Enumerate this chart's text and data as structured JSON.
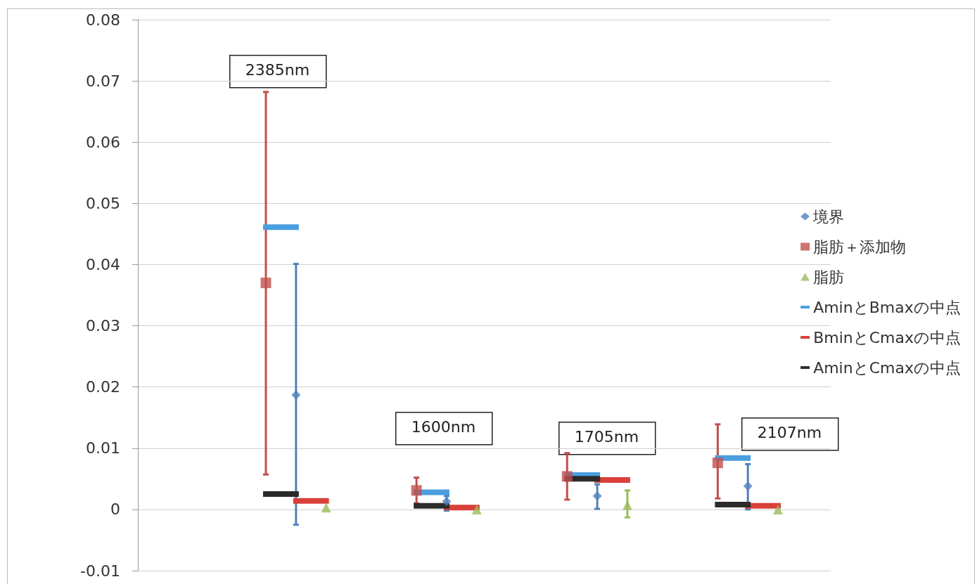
{
  "chart_data": {
    "type": "scatter",
    "categories": [
      null,
      null,
      null,
      null,
      null,
      null,
      null,
      null,
      null,
      null,
      null,
      null,
      null,
      null,
      null,
      null,
      null,
      null,
      null,
      null,
      null,
      null,
      null,
      null,
      null,
      null,
      null,
      null,
      null,
      null,
      null,
      null,
      null,
      null,
      null,
      null,
      null,
      null,
      null,
      null,
      null,
      null,
      null,
      null,
      null,
      null
    ],
    "ylim": [
      -0.01,
      0.08
    ],
    "yticks": [
      -0.01,
      0,
      0.01,
      0.02,
      0.03,
      0.04,
      0.05,
      0.06,
      0.07,
      0.08
    ],
    "grid": "y",
    "legend": "right",
    "annotations": [
      "2385nm",
      "1600nm",
      "1705nm",
      "2107nm"
    ],
    "series": [
      {
        "name": "境界",
        "color": "#4f81bd",
        "marker": "diamond",
        "values": [
          null,
          null,
          null,
          null,
          null,
          null,
          null,
          null,
          null,
          null,
          0.0187,
          null,
          null,
          null,
          null,
          null,
          null,
          null,
          null,
          null,
          0.0013,
          null,
          null,
          null,
          null,
          null,
          null,
          null,
          null,
          null,
          0.0022,
          null,
          null,
          null,
          null,
          null,
          null,
          null,
          null,
          null,
          0.0038,
          null,
          null,
          null,
          null,
          null
        ],
        "errors": [
          null,
          null,
          null,
          null,
          null,
          null,
          null,
          null,
          null,
          null,
          [
            -0.0025,
            0.0401
          ],
          null,
          null,
          null,
          null,
          null,
          null,
          null,
          null,
          null,
          [
            -0.0002,
            0.0022
          ],
          null,
          null,
          null,
          null,
          null,
          null,
          null,
          null,
          null,
          [
            0.0001,
            0.0041
          ],
          null,
          null,
          null,
          null,
          null,
          null,
          null,
          null,
          null,
          [
            0.0,
            0.0074
          ],
          null,
          null,
          null,
          null,
          null
        ]
      },
      {
        "name": "脂肪＋添加物",
        "color": "#c0504d",
        "marker": "square",
        "values": [
          null,
          null,
          null,
          null,
          null,
          null,
          null,
          null,
          0.037,
          null,
          null,
          null,
          null,
          null,
          null,
          null,
          null,
          null,
          0.0031,
          null,
          null,
          null,
          null,
          null,
          null,
          null,
          null,
          null,
          0.0054,
          null,
          null,
          null,
          null,
          null,
          null,
          null,
          null,
          null,
          0.0076,
          null,
          null,
          null,
          null,
          null,
          null,
          null
        ],
        "errors": [
          null,
          null,
          null,
          null,
          null,
          null,
          null,
          null,
          [
            0.0057,
            0.0682
          ],
          null,
          null,
          null,
          null,
          null,
          null,
          null,
          null,
          null,
          [
            0.001,
            0.0052
          ],
          null,
          null,
          null,
          null,
          null,
          null,
          null,
          null,
          null,
          [
            0.0016,
            0.0092
          ],
          null,
          null,
          null,
          null,
          null,
          null,
          null,
          null,
          null,
          [
            0.0018,
            0.0139
          ],
          null,
          null,
          null,
          null,
          null,
          null,
          null
        ]
      },
      {
        "name": "脂肪",
        "color": "#9bbb59",
        "marker": "triangle",
        "values": [
          null,
          null,
          null,
          null,
          null,
          null,
          null,
          null,
          null,
          null,
          null,
          null,
          0.0003,
          null,
          null,
          null,
          null,
          null,
          null,
          null,
          null,
          null,
          0.0,
          null,
          null,
          null,
          null,
          null,
          null,
          null,
          null,
          null,
          0.0007,
          null,
          null,
          null,
          null,
          null,
          null,
          null,
          null,
          null,
          0.0,
          null,
          null,
          null
        ],
        "errors": [
          null,
          null,
          null,
          null,
          null,
          null,
          null,
          null,
          null,
          null,
          null,
          null,
          null,
          null,
          null,
          null,
          null,
          null,
          null,
          null,
          null,
          null,
          null,
          null,
          null,
          null,
          null,
          null,
          null,
          null,
          null,
          null,
          [
            -0.0013,
            0.0031
          ],
          null,
          null,
          null,
          null,
          null,
          null,
          null,
          null,
          null,
          null,
          null,
          null,
          null
        ]
      },
      {
        "name": "AminとBmaxの中点",
        "type": "line",
        "marker": "none",
        "color": "#4a9fe0",
        "values": [
          null,
          null,
          null,
          null,
          null,
          null,
          null,
          null,
          0.0461,
          0.0461,
          0.0461,
          null,
          null,
          null,
          null,
          null,
          null,
          null,
          0.0028,
          0.0028,
          0.0028,
          null,
          null,
          null,
          null,
          null,
          null,
          null,
          0.0056,
          0.0056,
          0.0056,
          null,
          null,
          null,
          null,
          null,
          null,
          null,
          0.0084,
          0.0084,
          0.0084,
          null,
          null,
          null,
          null,
          null
        ]
      },
      {
        "name": "BminとCmaxの中点",
        "type": "line",
        "marker": "none",
        "color": "#d9403a",
        "values": [
          null,
          null,
          null,
          null,
          null,
          null,
          null,
          null,
          null,
          null,
          0.0014,
          0.0014,
          0.0014,
          null,
          null,
          null,
          null,
          null,
          null,
          null,
          0.0003,
          0.0003,
          0.0003,
          null,
          null,
          null,
          null,
          null,
          null,
          null,
          0.0048,
          0.0048,
          0.0048,
          null,
          null,
          null,
          null,
          null,
          null,
          null,
          0.0006,
          0.0006,
          0.0006,
          null,
          null,
          null
        ]
      },
      {
        "name": "AminとCmaxの中点",
        "type": "line",
        "marker": "none",
        "color": "#2b2b2b",
        "values": [
          null,
          null,
          null,
          null,
          null,
          null,
          null,
          null,
          0.0025,
          0.0025,
          0.0025,
          null,
          null,
          null,
          null,
          null,
          null,
          null,
          0.0006,
          0.0006,
          0.0006,
          null,
          null,
          null,
          null,
          null,
          null,
          null,
          0.005,
          0.005,
          0.005,
          null,
          null,
          null,
          null,
          null,
          null,
          null,
          0.0008,
          0.0008,
          0.0008,
          null,
          null,
          null,
          null,
          null
        ]
      }
    ]
  }
}
